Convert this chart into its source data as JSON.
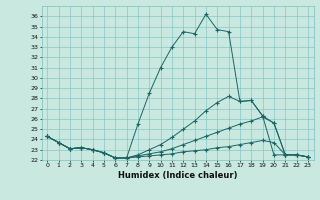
{
  "xlabel": "Humidex (Indice chaleur)",
  "background_color": "#c8e8e0",
  "grid_color": "#7bbfbf",
  "line_color": "#1a6666",
  "xlim": [
    -0.5,
    23.5
  ],
  "ylim": [
    22,
    37
  ],
  "xticks": [
    0,
    1,
    2,
    3,
    4,
    5,
    6,
    7,
    8,
    9,
    10,
    11,
    12,
    13,
    14,
    15,
    16,
    17,
    18,
    19,
    20,
    21,
    22,
    23
  ],
  "yticks": [
    22,
    23,
    24,
    25,
    26,
    27,
    28,
    29,
    30,
    31,
    32,
    33,
    34,
    35,
    36
  ],
  "lines": [
    {
      "x": [
        0,
        1,
        2,
        3,
        4,
        5,
        6,
        7,
        8,
        9,
        10,
        11,
        12,
        13,
        14,
        15,
        16,
        17,
        18,
        19,
        20,
        21,
        22,
        23
      ],
      "y": [
        24.3,
        23.7,
        23.1,
        23.2,
        23.0,
        22.7,
        22.2,
        22.2,
        25.5,
        28.5,
        31.0,
        33.0,
        34.5,
        34.3,
        36.2,
        34.7,
        34.5,
        27.7,
        27.8,
        26.3,
        22.5,
        22.5,
        22.5,
        22.3
      ]
    },
    {
      "x": [
        0,
        1,
        2,
        3,
        4,
        5,
        6,
        7,
        8,
        9,
        10,
        11,
        12,
        13,
        14,
        15,
        16,
        17,
        18,
        19,
        20,
        21,
        22,
        23
      ],
      "y": [
        24.3,
        23.7,
        23.1,
        23.2,
        23.0,
        22.7,
        22.2,
        22.2,
        22.5,
        23.0,
        23.5,
        24.2,
        25.0,
        25.8,
        26.8,
        27.6,
        28.2,
        27.7,
        27.8,
        26.3,
        25.6,
        22.5,
        22.5,
        22.3
      ]
    },
    {
      "x": [
        0,
        1,
        2,
        3,
        4,
        5,
        6,
        7,
        8,
        9,
        10,
        11,
        12,
        13,
        14,
        15,
        16,
        17,
        18,
        19,
        20,
        21,
        22,
        23
      ],
      "y": [
        24.3,
        23.7,
        23.1,
        23.2,
        23.0,
        22.7,
        22.2,
        22.2,
        22.4,
        22.6,
        22.8,
        23.1,
        23.5,
        23.9,
        24.3,
        24.7,
        25.1,
        25.5,
        25.8,
        26.2,
        25.6,
        22.5,
        22.5,
        22.3
      ]
    },
    {
      "x": [
        0,
        1,
        2,
        3,
        4,
        5,
        6,
        7,
        8,
        9,
        10,
        11,
        12,
        13,
        14,
        15,
        16,
        17,
        18,
        19,
        20,
        21,
        22,
        23
      ],
      "y": [
        24.3,
        23.7,
        23.1,
        23.2,
        23.0,
        22.7,
        22.2,
        22.2,
        22.3,
        22.4,
        22.5,
        22.6,
        22.8,
        22.9,
        23.0,
        23.2,
        23.3,
        23.5,
        23.7,
        23.9,
        23.7,
        22.5,
        22.5,
        22.3
      ]
    }
  ]
}
